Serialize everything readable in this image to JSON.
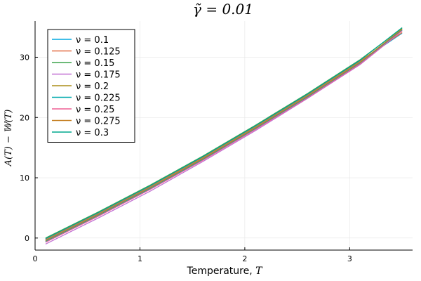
{
  "chart_data": {
    "type": "line",
    "title": "γ̃ = 0.01",
    "xlabel": "Temperature, ",
    "xlabel_symbol": "T",
    "ylabel": "A(T) − 𝕎(T)",
    "xlim": [
      0,
      3.6
    ],
    "ylim": [
      -2,
      36
    ],
    "xticks": [
      0,
      1,
      2,
      3
    ],
    "yticks": [
      0,
      10,
      20,
      30
    ],
    "grid": true,
    "legend_position": "top-left",
    "x": [
      0.1,
      0.6,
      1.1,
      1.6,
      2.1,
      2.6,
      3.1,
      3.5
    ],
    "series": [
      {
        "name": "ν = 0.1",
        "color": "#00a9e0",
        "values": [
          -0.3,
          4.0,
          8.5,
          13.3,
          18.4,
          23.7,
          29.3,
          34.0
        ]
      },
      {
        "name": "ν = 0.125",
        "color": "#e26f46",
        "values": [
          -0.2,
          4.1,
          8.6,
          13.4,
          18.5,
          23.8,
          29.4,
          34.1
        ]
      },
      {
        "name": "ν = 0.15",
        "color": "#3da44d",
        "values": [
          0.0,
          4.3,
          8.8,
          13.6,
          18.7,
          24.0,
          29.6,
          34.8
        ]
      },
      {
        "name": "ν = 0.175",
        "color": "#c271d2",
        "values": [
          -1.0,
          3.3,
          7.8,
          12.7,
          17.8,
          23.2,
          28.8,
          34.4
        ]
      },
      {
        "name": "ν = 0.2",
        "color": "#ac8d18",
        "values": [
          -0.5,
          3.8,
          8.3,
          13.1,
          18.2,
          23.5,
          29.1,
          34.6
        ]
      },
      {
        "name": "ν = 0.225",
        "color": "#00a9ad",
        "values": [
          -0.6,
          3.7,
          8.2,
          13.0,
          18.1,
          23.4,
          29.0,
          34.5
        ]
      },
      {
        "name": "ν = 0.25",
        "color": "#ed5e93",
        "values": [
          -0.7,
          3.6,
          8.1,
          12.9,
          18.0,
          23.3,
          28.9,
          34.4
        ]
      },
      {
        "name": "ν = 0.275",
        "color": "#c68125",
        "values": [
          -0.4,
          3.9,
          8.4,
          13.2,
          18.3,
          23.6,
          29.2,
          34.7
        ]
      },
      {
        "name": "ν = 0.3",
        "color": "#00a98d",
        "values": [
          -0.1,
          4.2,
          8.7,
          13.5,
          18.6,
          23.9,
          29.5,
          34.9
        ]
      }
    ]
  }
}
